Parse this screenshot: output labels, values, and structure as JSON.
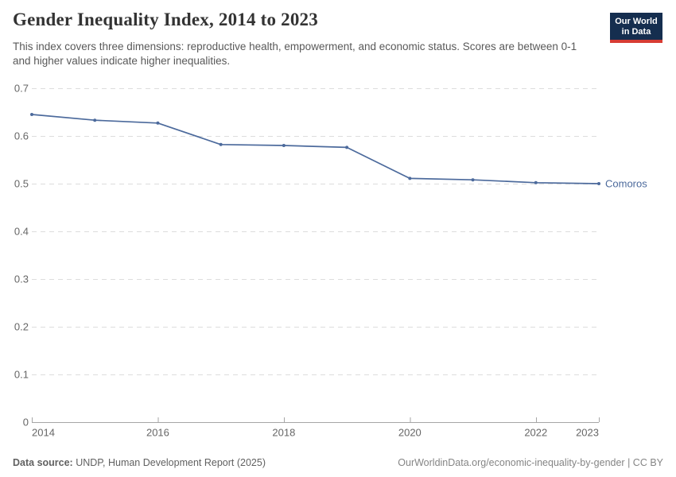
{
  "header": {
    "title": "Gender Inequality Index, 2014 to 2023",
    "subtitle": "This index covers three dimensions: reproductive health, empowerment, and economic status. Scores are between 0-1 and higher values indicate higher inequalities.",
    "logo": {
      "line1": "Our World",
      "line2": "in Data",
      "bg_color": "#152E4F",
      "stripe_color": "#D73C34",
      "text_color": "#FFFFFF"
    }
  },
  "chart_data": {
    "type": "line",
    "title": "Gender Inequality Index, 2014 to 2023",
    "xlabel": "",
    "ylabel": "",
    "x": [
      2014,
      2015,
      2016,
      2017,
      2018,
      2019,
      2020,
      2021,
      2022,
      2023
    ],
    "series": [
      {
        "name": "Comoros",
        "color": "#4C6A9C",
        "values": [
          0.645,
          0.633,
          0.627,
          0.582,
          0.58,
          0.576,
          0.511,
          0.508,
          0.502,
          0.5
        ]
      }
    ],
    "xlim": [
      2014,
      2023
    ],
    "ylim": [
      0,
      0.7
    ],
    "x_ticks": [
      2014,
      2016,
      2018,
      2020,
      2022,
      2023
    ],
    "y_ticks": [
      0,
      0.1,
      0.2,
      0.3,
      0.4,
      0.5,
      0.6,
      0.7
    ],
    "grid": "horizontal-dashed",
    "legend_position": "end-of-line",
    "colors": {
      "grid": "#DDDDDD",
      "axis": "#A6A6A6",
      "tick_label": "#666666"
    }
  },
  "footer": {
    "datasource_label": "Data source:",
    "datasource_text": " UNDP, Human Development Report (2025)",
    "link": "OurWorldinData.org/economic-inequality-by-gender",
    "separator": " | ",
    "license": "CC BY"
  }
}
